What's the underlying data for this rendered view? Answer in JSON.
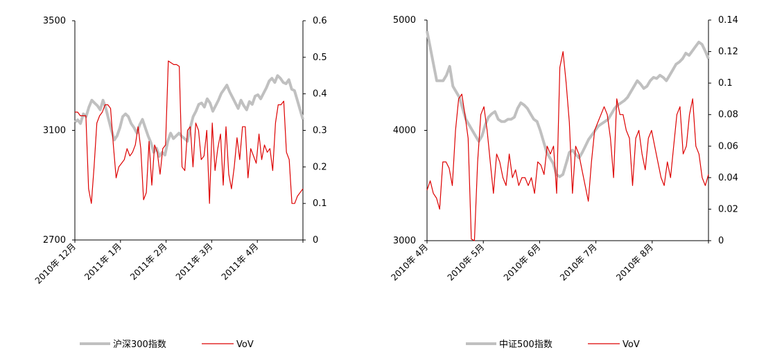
{
  "chart_data": [
    {
      "type": "line",
      "name": "chart-hs300",
      "left_axis": {
        "min": 2700,
        "max": 3500,
        "ticks": [
          "3500",
          "3100",
          "2700"
        ]
      },
      "right_axis": {
        "min": 0,
        "max": 0.6,
        "ticks": [
          "0.6",
          "0.5",
          "0.4",
          "0.3",
          "0.2",
          "0.1",
          "0"
        ]
      },
      "x_labels": [
        "2010年 12月",
        "2011年 1月",
        "2011年 2月",
        "2011年 3月",
        "2011年 4月"
      ],
      "grid": false,
      "legend_position": "bottom-center",
      "series": [
        {
          "name": "沪深300指数",
          "axis": "left",
          "color": "#c0c0c0",
          "values": [
            3130,
            3138,
            3125,
            3160,
            3150,
            3185,
            3210,
            3200,
            3190,
            3175,
            3210,
            3180,
            3140,
            3100,
            3065,
            3080,
            3110,
            3150,
            3160,
            3150,
            3125,
            3110,
            3090,
            3120,
            3140,
            3110,
            3080,
            3055,
            3020,
            3035,
            3005,
            3020,
            3010,
            3060,
            3090,
            3070,
            3080,
            3090,
            3078,
            3070,
            3060,
            3110,
            3150,
            3170,
            3195,
            3200,
            3185,
            3215,
            3200,
            3170,
            3190,
            3210,
            3235,
            3250,
            3265,
            3240,
            3220,
            3200,
            3180,
            3210,
            3190,
            3175,
            3205,
            3195,
            3225,
            3230,
            3215,
            3235,
            3255,
            3280,
            3290,
            3275,
            3300,
            3290,
            3275,
            3270,
            3285,
            3250,
            3245,
            3210,
            3175,
            3140
          ]
        },
        {
          "name": "VoV",
          "axis": "right",
          "color": "#dd0000",
          "values": [
            0.35,
            0.35,
            0.34,
            0.34,
            0.34,
            0.14,
            0.1,
            0.2,
            0.32,
            0.34,
            0.35,
            0.37,
            0.37,
            0.36,
            0.26,
            0.17,
            0.2,
            0.21,
            0.22,
            0.25,
            0.23,
            0.24,
            0.26,
            0.31,
            0.25,
            0.11,
            0.13,
            0.27,
            0.15,
            0.26,
            0.24,
            0.18,
            0.25,
            0.26,
            0.49,
            0.485,
            0.48,
            0.48,
            0.475,
            0.2,
            0.19,
            0.3,
            0.31,
            0.2,
            0.32,
            0.3,
            0.22,
            0.23,
            0.3,
            0.1,
            0.32,
            0.19,
            0.25,
            0.29,
            0.15,
            0.31,
            0.18,
            0.14,
            0.2,
            0.28,
            0.22,
            0.31,
            0.31,
            0.17,
            0.25,
            0.23,
            0.21,
            0.29,
            0.22,
            0.26,
            0.24,
            0.25,
            0.19,
            0.32,
            0.37,
            0.37,
            0.38,
            0.24,
            0.22,
            0.1,
            0.1,
            0.12,
            0.13,
            0.14
          ]
        }
      ],
      "legend": [
        {
          "label": "沪深300指数",
          "color": "#c0c0c0"
        },
        {
          "label": "VoV",
          "color": "#dd0000"
        }
      ]
    },
    {
      "type": "line",
      "name": "chart-csi500",
      "left_axis": {
        "min": 3000,
        "max": 5000,
        "ticks": [
          "5000",
          "4000",
          "3000"
        ]
      },
      "right_axis": {
        "min": 0,
        "max": 0.14,
        "ticks": [
          "0.14",
          "0.12",
          "0.1",
          "0.08",
          "0.06",
          "0.04",
          "0.02",
          "0"
        ]
      },
      "x_labels": [
        "2010年 4月",
        "2010年 5月",
        "2010年 6月",
        "2010年 7月",
        "2010年 8月"
      ],
      "grid": false,
      "legend_position": "bottom-center",
      "series": [
        {
          "name": "中证500指数",
          "axis": "left",
          "color": "#c0c0c0",
          "values": [
            4900,
            4750,
            4600,
            4450,
            4450,
            4450,
            4500,
            4580,
            4400,
            4350,
            4300,
            4200,
            4100,
            4050,
            4000,
            3950,
            3900,
            3950,
            4050,
            4120,
            4150,
            4170,
            4100,
            4080,
            4080,
            4100,
            4100,
            4120,
            4200,
            4250,
            4230,
            4200,
            4150,
            4100,
            4080,
            4000,
            3900,
            3800,
            3750,
            3700,
            3600,
            3580,
            3600,
            3700,
            3800,
            3820,
            3780,
            3750,
            3800,
            3860,
            3920,
            3960,
            4000,
            4040,
            4060,
            4080,
            4100,
            4150,
            4200,
            4230,
            4250,
            4270,
            4300,
            4350,
            4400,
            4450,
            4420,
            4380,
            4400,
            4450,
            4480,
            4470,
            4500,
            4480,
            4450,
            4500,
            4550,
            4600,
            4620,
            4650,
            4700,
            4680,
            4720,
            4760,
            4800,
            4780,
            4720,
            4650
          ]
        },
        {
          "name": "VoV",
          "axis": "right",
          "color": "#dd0000",
          "values": [
            0.032,
            0.038,
            0.03,
            0.027,
            0.02,
            0.05,
            0.05,
            0.046,
            0.035,
            0.07,
            0.09,
            0.093,
            0.08,
            0.065,
            0.001,
            0.0,
            0.05,
            0.08,
            0.085,
            0.07,
            0.05,
            0.03,
            0.055,
            0.05,
            0.04,
            0.035,
            0.055,
            0.04,
            0.045,
            0.035,
            0.04,
            0.04,
            0.035,
            0.04,
            0.03,
            0.05,
            0.048,
            0.042,
            0.06,
            0.055,
            0.06,
            0.03,
            0.11,
            0.12,
            0.1,
            0.075,
            0.03,
            0.06,
            0.055,
            0.045,
            0.035,
            0.025,
            0.05,
            0.07,
            0.075,
            0.08,
            0.085,
            0.08,
            0.065,
            0.04,
            0.09,
            0.08,
            0.08,
            0.07,
            0.065,
            0.035,
            0.065,
            0.07,
            0.055,
            0.045,
            0.065,
            0.07,
            0.06,
            0.05,
            0.04,
            0.035,
            0.05,
            0.04,
            0.06,
            0.08,
            0.085,
            0.055,
            0.06,
            0.08,
            0.09,
            0.06,
            0.055,
            0.04,
            0.035,
            0.042
          ]
        }
      ],
      "legend": [
        {
          "label": "中证500指数",
          "color": "#c0c0c0"
        },
        {
          "label": "VoV",
          "color": "#dd0000"
        }
      ]
    }
  ]
}
